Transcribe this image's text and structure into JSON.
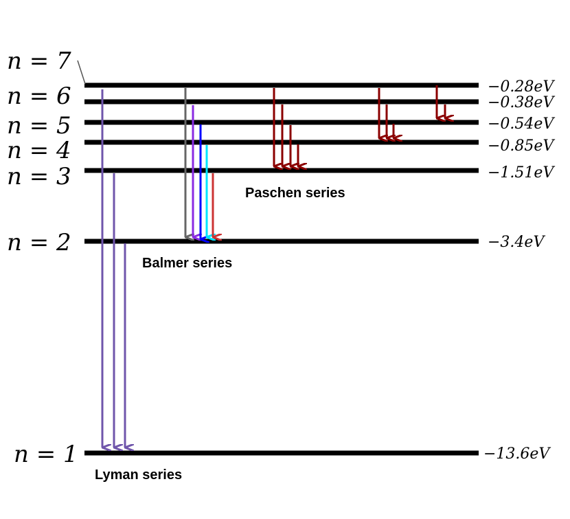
{
  "diagram": {
    "levels": [
      {
        "n": "n = 7",
        "energy": "−0.28eV"
      },
      {
        "n": "n = 6",
        "energy": "−0.38eV"
      },
      {
        "n": "n = 5",
        "energy": "−0.54eV"
      },
      {
        "n": "n = 4",
        "energy": "−0.85eV"
      },
      {
        "n": "n = 3",
        "energy": "−1.51eV"
      },
      {
        "n": "n = 2",
        "energy": "−3.4eV"
      },
      {
        "n": "n = 1",
        "energy": "−13.6eV"
      }
    ],
    "series": {
      "lyman": "Lyman series",
      "balmer": "Balmer series",
      "paschen": "Paschen series"
    },
    "colors": {
      "level_line": "#000000",
      "lyman": "#6f55ab",
      "balmer_7": "#666666",
      "balmer_6": "#8a2be2",
      "balmer_5": "#0000ff",
      "balmer_4": "#00e5ff",
      "balmer_3": "#cc3333",
      "paschen": "#8b0000"
    }
  }
}
